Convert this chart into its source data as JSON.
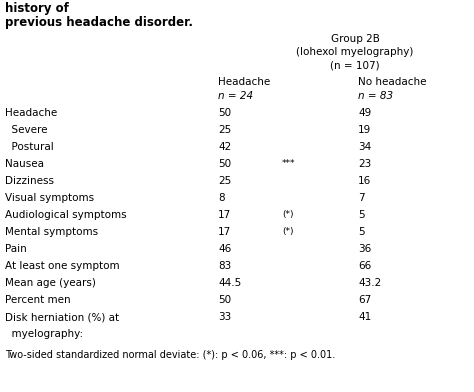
{
  "title_line1": "history of",
  "title_line2": "previous headache disorder.",
  "group_header": "Group 2B",
  "group_subheader": "(Iohexol myelography)",
  "group_n": "(n = 107)",
  "col1_header": "Headache",
  "col1_n": "n = 24",
  "col2_header": "No headache",
  "col2_n": "n = 83",
  "rows": [
    {
      "label": "Headache",
      "val1": "50",
      "sig": "",
      "val2": "49"
    },
    {
      "label": "  Severe",
      "val1": "25",
      "sig": "",
      "val2": "19"
    },
    {
      "label": "  Postural",
      "val1": "42",
      "sig": "",
      "val2": "34"
    },
    {
      "label": "Nausea",
      "val1": "50",
      "sig": "***",
      "val2": "23"
    },
    {
      "label": "Dizziness",
      "val1": "25",
      "sig": "",
      "val2": "16"
    },
    {
      "label": "Visual symptoms",
      "val1": "8",
      "sig": "",
      "val2": "7"
    },
    {
      "label": "Audiological symptoms",
      "val1": "17",
      "sig": "(*)",
      "val2": "5"
    },
    {
      "label": "Mental symptoms",
      "val1": "17",
      "sig": "(*)",
      "val2": "5"
    },
    {
      "label": "Pain",
      "val1": "46",
      "sig": "",
      "val2": "36"
    },
    {
      "label": "At least one symptom",
      "val1": "83",
      "sig": "",
      "val2": "66"
    },
    {
      "label": "Mean age (years)",
      "val1": "44.5",
      "sig": "",
      "val2": "43.2"
    },
    {
      "label": "Percent men",
      "val1": "50",
      "sig": "",
      "val2": "67"
    },
    {
      "label": "Disk herniation (%) at",
      "val1": "33",
      "sig": "",
      "val2": "41"
    },
    {
      "label": "  myelography:",
      "val1": "",
      "sig": "",
      "val2": ""
    }
  ],
  "footnote": "Two-sided standardized normal deviate: (*): p < 0.06, ***: p < 0.01.",
  "bg_color": "#ffffff",
  "text_color": "#000000",
  "font_size": 7.5,
  "title_font_size": 8.5
}
